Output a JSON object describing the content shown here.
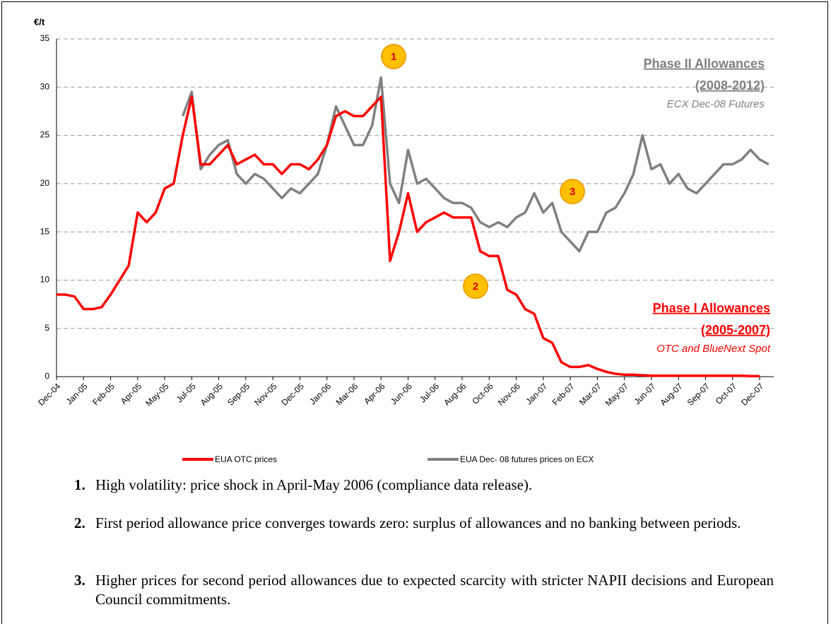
{
  "chart_data": {
    "type": "line",
    "y_label": "€/t",
    "categories": [
      "Dec-04",
      null,
      null,
      "Jan-05",
      null,
      null,
      "Feb-05",
      null,
      null,
      "Apr-05",
      null,
      null,
      "May-05",
      null,
      null,
      "Jul-05",
      null,
      null,
      "Aug-05",
      null,
      null,
      "Sep-05",
      null,
      null,
      "Nov-05",
      null,
      null,
      "Dec-05",
      null,
      null,
      "Jan-06",
      null,
      null,
      "Mar-06",
      null,
      null,
      "Apr-06",
      null,
      null,
      "Jun-06",
      null,
      null,
      "Jul-06",
      null,
      null,
      "Aug-06",
      null,
      null,
      "Oct-06",
      null,
      null,
      "Nov-06",
      null,
      null,
      "Jan-07",
      null,
      null,
      "Feb-07",
      null,
      null,
      "Mar-07",
      null,
      null,
      "May-07",
      null,
      null,
      "Jun-07",
      null,
      null,
      "Aug-07",
      null,
      null,
      "Sep-07",
      null,
      null,
      "Oct-07",
      null,
      null,
      "Dec-07",
      null
    ],
    "series": [
      {
        "name": "EUA OTC prices",
        "color": "#ff0000",
        "values": [
          8.5,
          8.5,
          8.3,
          7,
          7,
          7.2,
          8.5,
          10,
          11.5,
          17,
          16,
          17,
          19.5,
          20,
          25,
          29,
          22,
          22,
          23,
          24,
          22,
          22.5,
          23,
          22,
          22,
          21,
          22,
          22,
          21.5,
          22.5,
          24,
          27,
          27.5,
          27,
          27,
          28,
          29,
          12,
          15,
          19,
          15,
          16,
          16.5,
          17,
          16.5,
          16.5,
          16.5,
          13,
          12.5,
          12.5,
          9,
          8.5,
          7,
          6.5,
          4,
          3.5,
          1.5,
          1,
          1,
          1.2,
          0.8,
          0.5,
          0.3,
          0.2,
          0.2,
          0.15,
          0.1,
          0.1,
          0.1,
          0.1,
          0.1,
          0.1,
          0.1,
          0.1,
          0.1,
          0.1,
          0.1,
          0.05,
          0.05,
          null
        ]
      },
      {
        "name": "EUA Dec- 08 futures prices on ECX",
        "color": "#808080",
        "values": [
          null,
          null,
          null,
          null,
          null,
          null,
          null,
          null,
          null,
          null,
          null,
          null,
          null,
          null,
          27,
          29.5,
          21.5,
          23,
          24,
          24.5,
          21,
          20,
          21,
          20.5,
          19.5,
          18.5,
          19.5,
          19,
          20,
          21,
          24,
          28,
          26,
          24,
          24,
          26,
          31,
          20,
          18,
          23.5,
          20,
          20.5,
          19.5,
          18.5,
          18,
          18,
          17.5,
          16,
          15.5,
          16,
          15.5,
          16.5,
          17,
          19,
          17,
          18,
          15,
          14,
          13,
          15,
          15,
          17,
          17.5,
          19,
          21,
          25,
          21.5,
          22,
          20,
          21,
          19.5,
          19,
          20,
          21,
          22,
          22,
          22.5,
          23.5,
          22.5,
          22
        ]
      }
    ],
    "ylim": [
      0,
      35
    ],
    "yticks": [
      0,
      5,
      10,
      15,
      20,
      25,
      30,
      35
    ],
    "grid": true,
    "annotations": [
      "1",
      "2",
      "3"
    ],
    "phase2": {
      "title": "Phase II Allowances",
      "years": "(2008-2012)",
      "subtitle": "ECX Dec-08 Futures"
    },
    "phase1": {
      "title": "Phase I Allowances",
      "years": "(2005-2007)",
      "subtitle": "OTC and BlueNext Spot"
    },
    "legend": "bottom"
  },
  "notes": [
    {
      "number": "1.",
      "text": "High volatility: price shock in April-May 2006 (compliance data release)."
    },
    {
      "number": "2.",
      "text": "First period allowance price converges towards zero: surplus of allowances and no banking between periods."
    },
    {
      "number": "3.",
      "text": "Higher prices for second period allowances due to expected scarcity with stricter NAPII decisions and European Council commitments."
    }
  ]
}
